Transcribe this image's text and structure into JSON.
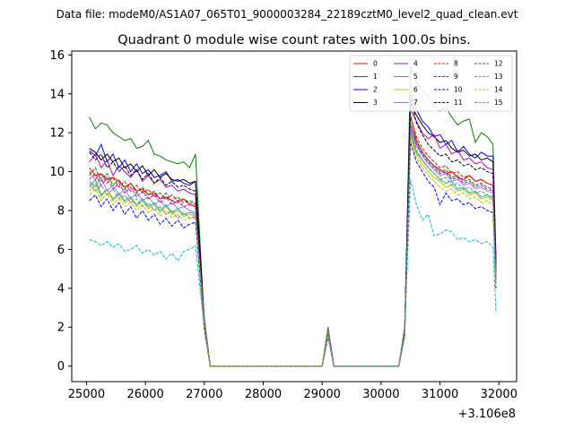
{
  "suptitle": "Data file: modeM0/AS1A07_065T01_9000003284_22189cztM0_level2_quad_clean.evt",
  "chart_data": {
    "type": "line",
    "title": "Quadrant 0 module wise count rates with 100.0s bins.",
    "xlabel": "",
    "ylabel": "",
    "x_offset_label": "+3.106e8",
    "xlim": [
      24750,
      32300
    ],
    "ylim": [
      -0.8,
      16.2
    ],
    "xticks": [
      25000,
      26000,
      27000,
      28000,
      29000,
      30000,
      31000,
      32000
    ],
    "xtick_labels": [
      "25000",
      "26000",
      "27000",
      "28000",
      "29000",
      "30000",
      "31000",
      "32000"
    ],
    "yticks": [
      0,
      2,
      4,
      6,
      8,
      10,
      12,
      14,
      16
    ],
    "ytick_labels": [
      "0",
      "2",
      "4",
      "6",
      "8",
      "10",
      "12",
      "14",
      "16"
    ],
    "legend_position": "upper-right",
    "legend_columns": 4,
    "gap_x": [
      27000,
      27100,
      27200,
      27300,
      27400,
      27500,
      27600,
      27700,
      27800,
      27900,
      28000,
      28100,
      28200,
      28300,
      28400,
      28500,
      28600,
      28700,
      28800,
      28900,
      29000,
      29100,
      29200,
      29300,
      29400,
      29500,
      29600,
      29700,
      29800,
      29900,
      30000,
      30100,
      30200,
      30300,
      30400
    ],
    "gap_values": [
      2.5,
      0,
      0,
      0,
      0,
      0,
      0,
      0,
      0,
      0,
      0,
      0,
      0,
      0,
      0,
      0,
      0,
      0,
      0,
      0,
      0,
      2.0,
      0,
      0,
      0,
      0,
      0,
      0,
      0,
      0,
      0,
      0,
      0,
      0,
      2.0
    ],
    "segment1_x": [
      25050,
      25150,
      25250,
      25350,
      25450,
      25550,
      25650,
      25750,
      25850,
      25950,
      26050,
      26150,
      26250,
      26350,
      26450,
      26550,
      26650,
      26750,
      26850
    ],
    "segment2_x": [
      30500,
      30600,
      30700,
      30800,
      30900,
      31000,
      31100,
      31200,
      31300,
      31400,
      31500,
      31600,
      31700,
      31800,
      31900,
      31950
    ],
    "series": [
      {
        "name": "0",
        "color": "#ff0000",
        "dash": "solid",
        "seg1": [
          10.2,
          9.8,
          9.9,
          9.6,
          9.7,
          9.5,
          9.2,
          9.4,
          9.0,
          9.1,
          8.8,
          8.9,
          8.6,
          8.7,
          8.5,
          8.4,
          8.6,
          8.3,
          8.2
        ],
        "seg2": [
          12.9,
          11.6,
          11.0,
          10.6,
          10.3,
          10.1,
          9.9,
          10.0,
          9.7,
          9.6,
          9.8,
          9.5,
          9.6,
          9.4,
          9.3,
          4.8
        ]
      },
      {
        "name": "1",
        "color": "#008000",
        "dash": "solid",
        "seg1": [
          12.8,
          12.2,
          12.5,
          12.4,
          12.0,
          11.8,
          11.6,
          11.7,
          11.2,
          11.3,
          11.6,
          10.9,
          10.8,
          10.6,
          10.5,
          10.4,
          10.5,
          10.2,
          10.9
        ],
        "seg2": [
          15.4,
          14.6,
          14.2,
          13.9,
          13.4,
          13.1,
          13.3,
          12.8,
          12.4,
          12.6,
          12.7,
          11.5,
          12.0,
          11.8,
          11.4,
          5.6
        ]
      },
      {
        "name": "2",
        "color": "#0000ff",
        "dash": "solid",
        "seg1": [
          11.1,
          10.8,
          11.4,
          10.5,
          10.9,
          10.2,
          10.6,
          10.0,
          10.4,
          9.9,
          10.1,
          9.7,
          9.8,
          10.0,
          9.5,
          9.6,
          9.4,
          9.3,
          9.5
        ],
        "seg2": [
          14.0,
          13.2,
          12.6,
          12.3,
          11.8,
          11.9,
          11.4,
          11.6,
          11.0,
          11.3,
          10.9,
          10.7,
          11.0,
          10.8,
          10.8,
          5.4
        ]
      },
      {
        "name": "3",
        "color": "#000000",
        "dash": "solid",
        "seg1": [
          11.2,
          11.0,
          10.6,
          10.9,
          10.5,
          10.7,
          10.2,
          10.4,
          10.0,
          10.3,
          9.8,
          10.1,
          9.7,
          9.9,
          9.6,
          9.5,
          9.6,
          9.4,
          9.5
        ],
        "seg2": [
          13.5,
          12.9,
          12.4,
          12.0,
          11.8,
          11.5,
          11.6,
          11.2,
          11.0,
          11.1,
          10.8,
          10.9,
          10.6,
          10.7,
          10.5,
          5.2
        ]
      },
      {
        "name": "4",
        "color": "#c000c0",
        "dash": "solid",
        "seg1": [
          10.5,
          10.9,
          10.2,
          10.6,
          9.8,
          10.3,
          10.0,
          9.7,
          10.1,
          9.5,
          9.8,
          9.4,
          9.6,
          9.2,
          9.3,
          9.0,
          9.1,
          8.9,
          8.8
        ],
        "seg2": [
          13.2,
          12.6,
          12.0,
          11.7,
          11.9,
          11.2,
          11.4,
          10.9,
          11.1,
          10.6,
          10.7,
          10.4,
          10.5,
          10.2,
          10.1,
          5.0
        ]
      },
      {
        "name": "5",
        "color": "#00c0a0",
        "dash": "solid",
        "seg1": [
          9.2,
          9.6,
          8.8,
          9.1,
          8.6,
          8.9,
          8.5,
          8.7,
          8.3,
          8.6,
          8.2,
          8.4,
          8.0,
          8.3,
          7.9,
          8.1,
          7.8,
          7.9,
          7.8
        ],
        "seg2": [
          12.0,
          11.0,
          10.6,
          10.2,
          9.9,
          9.6,
          9.4,
          9.5,
          9.1,
          9.2,
          8.9,
          9.0,
          8.7,
          8.8,
          8.6,
          4.4
        ]
      },
      {
        "name": "6",
        "color": "#c0c000",
        "dash": "solid",
        "seg1": [
          9.0,
          9.4,
          8.7,
          9.1,
          8.5,
          8.8,
          8.4,
          8.6,
          8.2,
          8.5,
          8.1,
          8.3,
          7.9,
          8.2,
          7.8,
          8.0,
          7.7,
          7.8,
          7.7
        ],
        "seg2": [
          11.8,
          10.9,
          10.4,
          10.0,
          9.7,
          9.5,
          9.2,
          9.3,
          9.0,
          9.1,
          8.8,
          8.9,
          8.6,
          8.7,
          8.5,
          4.3
        ]
      },
      {
        "name": "7",
        "color": "#8080ff",
        "dash": "solid",
        "seg1": [
          9.5,
          9.2,
          9.7,
          9.0,
          9.3,
          8.8,
          9.1,
          8.6,
          8.9,
          8.5,
          8.7,
          8.3,
          8.5,
          8.2,
          8.4,
          8.1,
          8.2,
          8.0,
          7.9
        ],
        "seg2": [
          12.2,
          11.3,
          10.8,
          10.4,
          10.1,
          9.8,
          9.9,
          9.5,
          9.6,
          9.3,
          9.4,
          9.1,
          9.2,
          9.0,
          8.9,
          4.5
        ]
      },
      {
        "name": "8",
        "color": "#ff0000",
        "dash": "dashed",
        "seg1": [
          10.0,
          9.6,
          9.9,
          9.4,
          9.7,
          9.2,
          9.5,
          9.0,
          9.3,
          8.9,
          9.1,
          8.7,
          8.9,
          8.6,
          8.8,
          8.5,
          8.6,
          8.4,
          8.3
        ],
        "seg2": [
          12.8,
          11.8,
          11.2,
          10.8,
          10.5,
          10.2,
          10.3,
          9.9,
          10.0,
          9.7,
          9.8,
          9.5,
          9.6,
          9.4,
          9.3,
          4.7
        ]
      },
      {
        "name": "9",
        "color": "#008000",
        "dash": "dashed",
        "seg1": [
          9.8,
          10.2,
          9.5,
          9.9,
          9.3,
          9.6,
          9.1,
          9.4,
          8.9,
          9.2,
          8.8,
          9.0,
          8.6,
          8.9,
          8.5,
          8.7,
          8.4,
          8.5,
          8.4
        ],
        "seg2": [
          12.5,
          11.5,
          11.0,
          10.6,
          10.3,
          10.0,
          10.1,
          9.7,
          9.8,
          9.5,
          9.6,
          9.3,
          9.4,
          9.2,
          9.1,
          4.6
        ]
      },
      {
        "name": "10",
        "color": "#0000ff",
        "dash": "dashed",
        "seg1": [
          8.5,
          8.8,
          8.2,
          8.6,
          8.0,
          8.4,
          7.8,
          8.2,
          7.6,
          8.0,
          7.5,
          7.8,
          7.3,
          7.6,
          7.2,
          7.5,
          7.1,
          7.3,
          7.4
        ],
        "seg2": [
          11.5,
          10.5,
          10.0,
          9.5,
          9.2,
          8.3,
          8.9,
          8.5,
          8.6,
          8.3,
          8.4,
          8.1,
          8.2,
          8.0,
          7.9,
          4.0
        ]
      },
      {
        "name": "11",
        "color": "#000000",
        "dash": "dashed",
        "seg1": [
          11.0,
          10.6,
          10.9,
          10.2,
          10.5,
          10.0,
          10.3,
          9.8,
          10.1,
          9.6,
          9.9,
          9.4,
          9.7,
          9.3,
          9.5,
          9.2,
          9.3,
          9.1,
          9.0
        ],
        "seg2": [
          13.8,
          12.5,
          11.9,
          11.4,
          11.1,
          10.8,
          10.9,
          10.5,
          10.6,
          10.3,
          10.4,
          10.1,
          10.2,
          10.0,
          9.9,
          5.0
        ]
      },
      {
        "name": "12",
        "color": "#c000c0",
        "dash": "dashed",
        "seg1": [
          9.6,
          9.9,
          9.3,
          9.7,
          9.1,
          9.4,
          8.9,
          9.2,
          8.7,
          9.0,
          8.6,
          8.8,
          8.4,
          8.7,
          8.3,
          8.5,
          8.2,
          8.3,
          8.2
        ],
        "seg2": [
          12.4,
          11.4,
          10.9,
          10.5,
          10.2,
          9.9,
          10.0,
          9.6,
          9.7,
          9.4,
          9.5,
          9.2,
          9.3,
          9.1,
          9.0,
          4.5
        ]
      },
      {
        "name": "13",
        "color": "#00c0c0",
        "dash": "dashed",
        "seg1": [
          6.5,
          6.4,
          6.2,
          6.4,
          6.1,
          6.3,
          5.9,
          6.0,
          6.2,
          5.8,
          6.0,
          5.7,
          5.9,
          5.5,
          5.8,
          5.4,
          5.9,
          6.0,
          6.2
        ],
        "seg2": [
          9.6,
          8.3,
          7.5,
          7.8,
          6.7,
          6.8,
          7.0,
          6.9,
          6.5,
          6.6,
          6.4,
          6.5,
          6.3,
          6.4,
          6.1,
          2.8
        ]
      },
      {
        "name": "14",
        "color": "#c0c000",
        "dash": "dashed",
        "seg1": [
          8.8,
          9.1,
          8.5,
          8.9,
          8.3,
          8.6,
          8.2,
          8.4,
          8.0,
          8.3,
          7.9,
          8.1,
          7.7,
          8.0,
          7.6,
          7.8,
          7.5,
          7.6,
          7.6
        ],
        "seg2": [
          11.6,
          10.7,
          10.2,
          9.8,
          9.5,
          9.2,
          9.0,
          9.1,
          8.8,
          8.9,
          8.6,
          8.7,
          8.4,
          8.5,
          8.3,
          4.2
        ]
      },
      {
        "name": "15",
        "color": "#808080",
        "dash": "dashed",
        "seg1": [
          9.4,
          9.0,
          9.3,
          8.8,
          9.1,
          8.6,
          8.8,
          8.4,
          8.6,
          8.2,
          8.4,
          8.0,
          8.2,
          7.8,
          8.0,
          7.6,
          7.9,
          7.6,
          7.7
        ],
        "seg2": [
          12.1,
          11.1,
          10.6,
          10.2,
          9.9,
          9.6,
          9.7,
          9.3,
          9.4,
          9.1,
          9.2,
          8.9,
          9.0,
          8.8,
          8.7,
          4.3
        ]
      }
    ]
  }
}
